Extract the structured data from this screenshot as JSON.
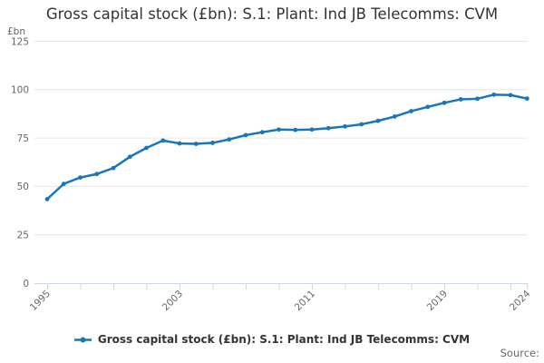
{
  "title": "Gross capital stock (£bn): S.1: Plant: Ind JB Telecomms: CVM",
  "y_axis_unit": "£bn",
  "legend": {
    "label": "Gross capital stock (£bn): S.1: Plant: Ind JB Telecomms: CVM"
  },
  "source_label": "Source:",
  "colors": {
    "line": "#1776bc",
    "grid": "#e6e6e6",
    "axis": "#ccd6eb",
    "tick_text": "#666666",
    "title_text": "#333333"
  },
  "chart_data": {
    "type": "line",
    "title": "Gross capital stock (£bn): S.1: Plant: Ind JB Telecomms: CVM",
    "ylabel": "£bn",
    "xlabel": "",
    "ylim": [
      0,
      125
    ],
    "y_ticks": [
      0,
      25,
      50,
      75,
      100,
      125
    ],
    "x": [
      1995,
      1996,
      1997,
      1998,
      1999,
      2000,
      2001,
      2002,
      2003,
      2004,
      2005,
      2006,
      2007,
      2008,
      2009,
      2010,
      2011,
      2012,
      2013,
      2014,
      2015,
      2016,
      2017,
      2018,
      2019,
      2020,
      2021,
      2022,
      2023,
      2024
    ],
    "series": [
      {
        "name": "Gross capital stock (£bn): S.1: Plant: Ind JB Telecomms: CVM",
        "values": [
          43.4,
          51.3,
          54.6,
          56.4,
          59.5,
          65.3,
          69.9,
          73.7,
          72.2,
          72.0,
          72.5,
          74.3,
          76.5,
          78.0,
          79.4,
          79.2,
          79.4,
          80.1,
          81.0,
          82.1,
          83.9,
          86.1,
          88.9,
          91.1,
          93.2,
          95.0,
          95.3,
          97.4,
          97.2,
          95.4
        ]
      }
    ],
    "x_minor_tick_step_years": 2,
    "x_labeled_ticks": [
      {
        "year": 1995,
        "label": "1995"
      },
      {
        "year": 2003,
        "label": "2003"
      },
      {
        "year": 2011,
        "label": "2011"
      },
      {
        "year": 2019,
        "label": "2019"
      },
      {
        "year": 2024,
        "label": "2024"
      }
    ],
    "grid": "horizontal",
    "legend_position": "bottom",
    "marker": "circle"
  }
}
